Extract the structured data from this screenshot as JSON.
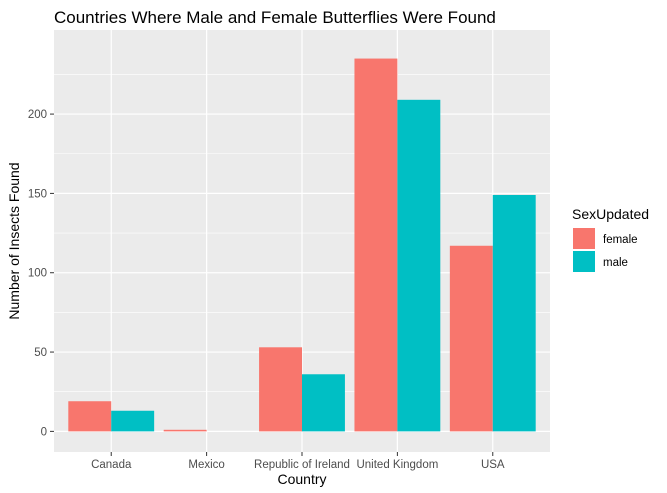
{
  "chart_data": {
    "type": "bar",
    "title": "Countries Where Male and Female Butterflies Were Found",
    "xlabel": "Country",
    "ylabel": "Number of Insects Found",
    "categories": [
      "Canada",
      "Mexico",
      "Republic of Ireland",
      "United Kingdom",
      "USA"
    ],
    "series": [
      {
        "name": "female",
        "color": "#F8766D",
        "values": [
          19,
          1,
          53,
          235,
          117
        ]
      },
      {
        "name": "male",
        "color": "#00BFC4",
        "values": [
          13,
          0,
          36,
          209,
          149
        ]
      }
    ],
    "ylim": [
      -13,
      253
    ],
    "yticks": [
      0,
      50,
      100,
      150,
      200
    ],
    "ytick_labels": [
      "0",
      "50",
      "100",
      "150",
      "200"
    ],
    "grid": true,
    "legend": {
      "title": "SexUpdated",
      "position": "right"
    }
  }
}
